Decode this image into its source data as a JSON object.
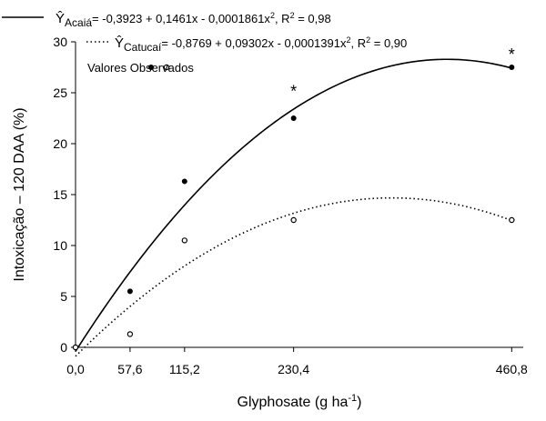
{
  "chart_data": {
    "type": "scatter",
    "x_label": {
      "text": "Glyphosate (g ha",
      "sup": "-1",
      "end": ")"
    },
    "y_label": "Intoxicação – 120 DAA (%)",
    "x": [
      0,
      57.6,
      115.2,
      230.4,
      460.8
    ],
    "series": [
      {
        "name": {
          "y": "Ŷ",
          "sub": "Acaiá",
          "text1": "= -0,3923 + 0,1461x - 0,0001861x",
          "sup1": "2",
          "text2": ", R",
          "sup2": "2",
          "text3": " = 0,98"
        },
        "color": "#000000",
        "marker": "filled",
        "line": "solid",
        "values": [
          0,
          5.5,
          16.3,
          22.5,
          27.5
        ],
        "fit": [
          -0.3923,
          0.1461,
          -0.0001861
        ]
      },
      {
        "name": {
          "y": "Ŷ",
          "sub": "Catucaí",
          "text1": "= -0,8769 + 0,09302x - 0,0001391x",
          "sup1": "2",
          "text2": ", R",
          "sup2": "2",
          "text3": " = 0,90"
        },
        "color": "#000000",
        "marker": "open",
        "line": "dotted",
        "values": [
          0,
          1.3,
          10.5,
          12.5,
          12.5
        ],
        "fit": [
          -0.8769,
          0.09302,
          -0.0001391
        ]
      }
    ],
    "observed_label": "Valores Observados",
    "annotations": [
      {
        "text": "*",
        "x": 230.4,
        "y": 25.4
      },
      {
        "text": "*",
        "x": 460.8,
        "y": 29.0
      }
    ],
    "xlim": [
      0,
      473
    ],
    "ylim": [
      0,
      30
    ],
    "xticks": [
      {
        "value": 0,
        "label": "0,0"
      },
      {
        "value": 57.6,
        "label": "57,6"
      },
      {
        "value": 115.2,
        "label": "115,2"
      },
      {
        "value": 230.4,
        "label": "230,4"
      },
      {
        "value": 460.8,
        "label": "460,8"
      }
    ],
    "yticks": [
      0,
      5,
      10,
      15,
      20,
      25,
      30
    ],
    "grid": false
  }
}
